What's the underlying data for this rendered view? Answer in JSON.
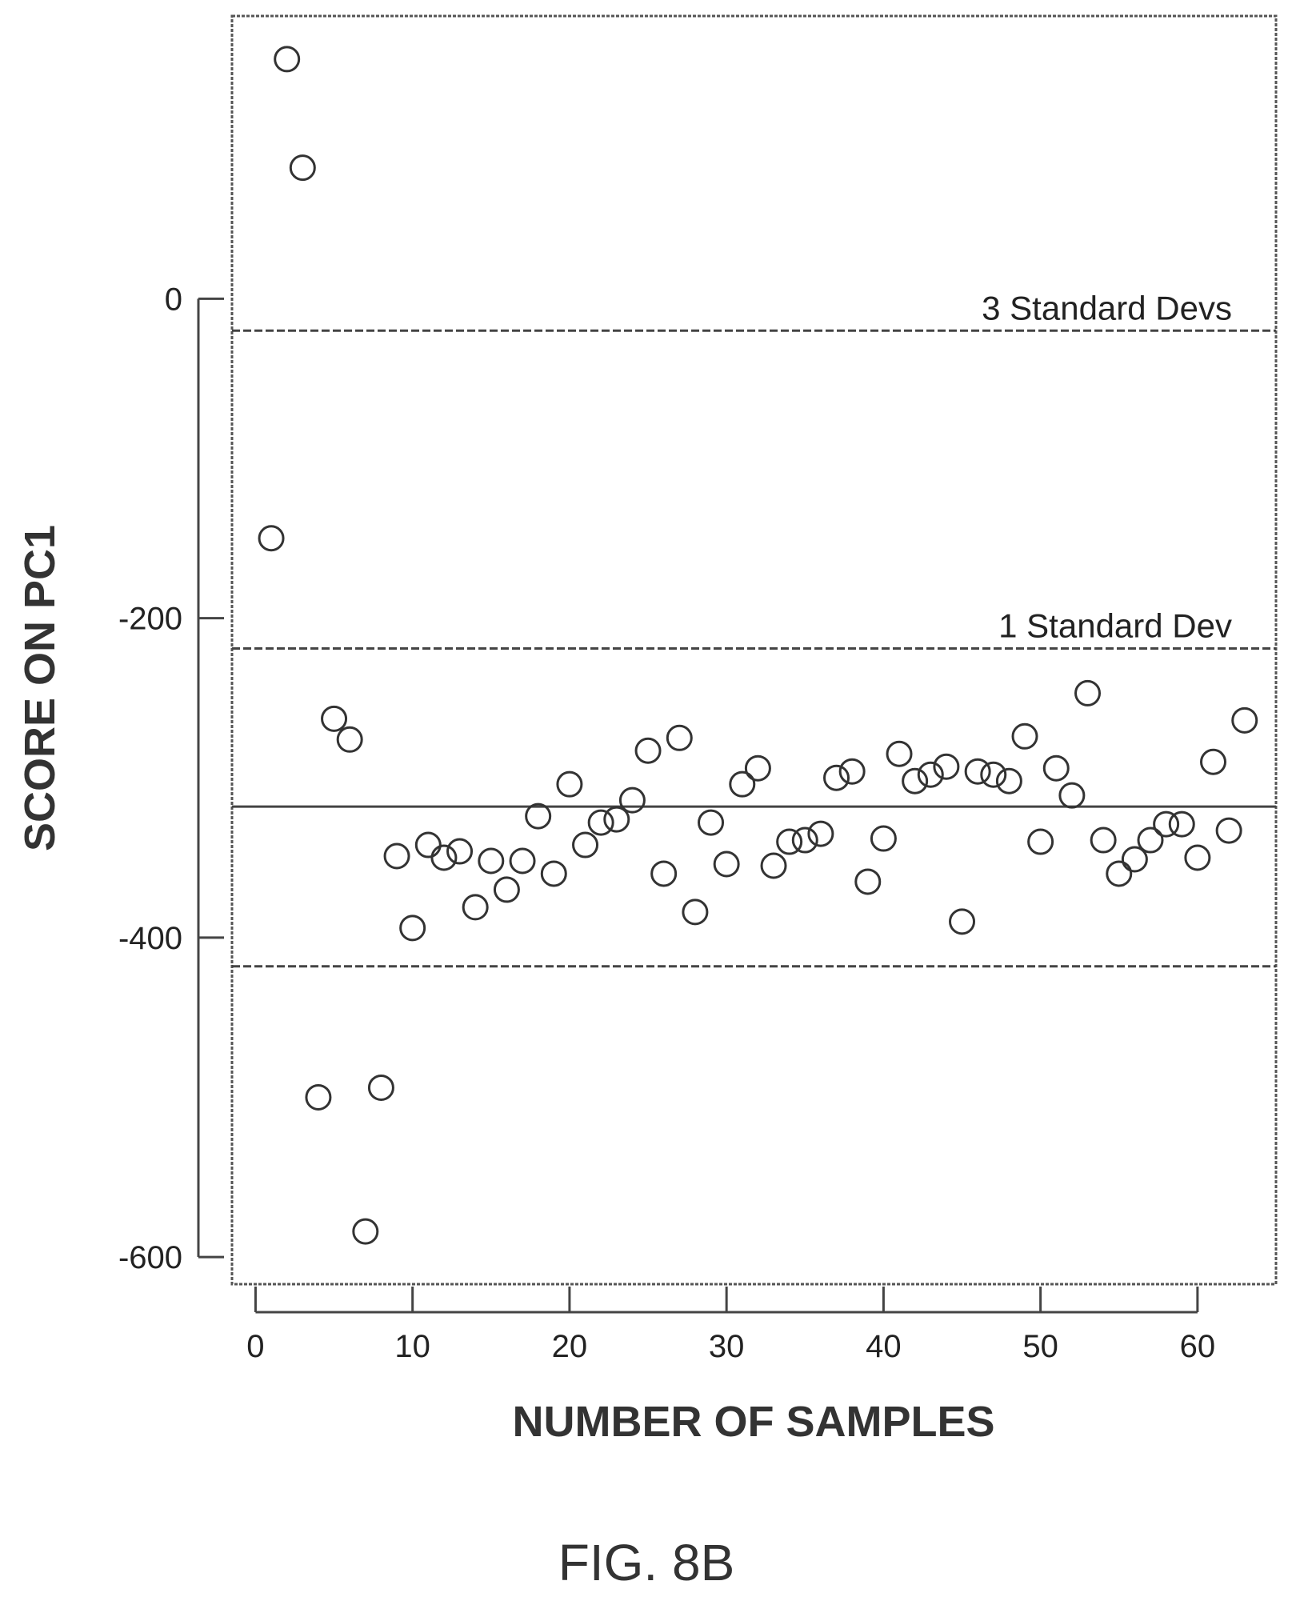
{
  "chart_data": {
    "type": "scatter",
    "xlabel": "NUMBER OF SAMPLES",
    "ylabel": "SCORE ON PC1",
    "xlim": [
      -1.5,
      65
    ],
    "ylim": [
      -617,
      177
    ],
    "xticks": [
      0,
      10,
      20,
      30,
      40,
      50,
      60
    ],
    "yticks": [
      0,
      -200,
      -400,
      -600
    ],
    "grid": false,
    "marker": "open-circle",
    "reference_lines": [
      {
        "label": "3 Standard Devs",
        "y": -20,
        "style": "dashed"
      },
      {
        "label": "1 Standard Dev",
        "y": -219,
        "style": "dashed"
      },
      {
        "label": "",
        "y": -318,
        "style": "solid"
      },
      {
        "label": "",
        "y": -418,
        "style": "dashed"
      }
    ],
    "series": [
      {
        "x": [
          1,
          2,
          3,
          4,
          5,
          6,
          7,
          8,
          9,
          10,
          11,
          12,
          13,
          14,
          15,
          16,
          17,
          18,
          19,
          20,
          21,
          22,
          23,
          24,
          25,
          26,
          27,
          28,
          29,
          30,
          31,
          32,
          33,
          34,
          35,
          36,
          37,
          38,
          39,
          40,
          41,
          42,
          43,
          44,
          45,
          46,
          47,
          48,
          49,
          50,
          51,
          52,
          53,
          54,
          55,
          56,
          57,
          58,
          59,
          60,
          61,
          62,
          63
        ],
        "y": [
          -150,
          150,
          82,
          -500,
          -263,
          -276,
          -584,
          -494,
          -349,
          -394,
          -342,
          -350,
          -346,
          -381,
          -352,
          -370,
          -352,
          -324,
          -360,
          -304,
          -342,
          -328,
          -326,
          -314,
          -283,
          -360,
          -275,
          -384,
          -328,
          -354,
          -304,
          -294,
          -355,
          -340,
          -339,
          -335,
          -300,
          -296,
          -365,
          -338,
          -285,
          -302,
          -298,
          -293,
          -390,
          -296,
          -298,
          -302,
          -274,
          -340,
          -294,
          -311,
          -247,
          -339,
          -360,
          -351,
          -339,
          -329,
          -329,
          -350,
          -290,
          -333,
          -264
        ]
      }
    ]
  },
  "figure_label": "FIG. 8B"
}
